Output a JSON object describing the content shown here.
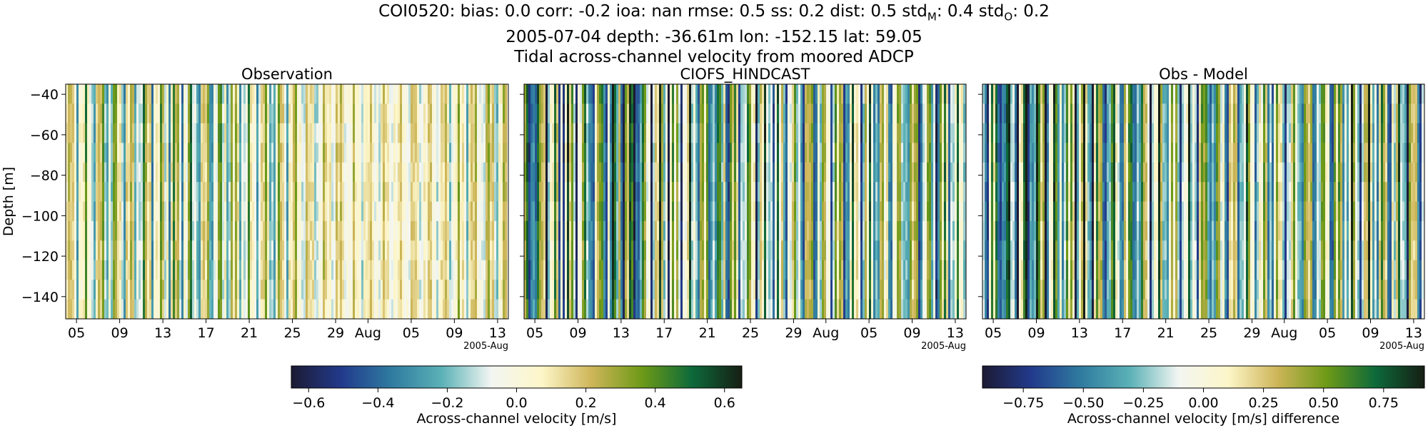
{
  "header": {
    "station_line": {
      "prefix": "COI0520: bias: 0.0  corr: -0.2  ioa: nan  rmse: 0.5  ss: 0.2  dist: 0.5  std",
      "sub_m": "M",
      "mid": ": 0.4  std",
      "sub_o": "O",
      "suffix": ": 0.2"
    },
    "info_line": "2005-07-04 depth: -36.61m lon: -152.15 lat: 59.05",
    "description_line": "Tidal across-channel velocity from moored ADCP"
  },
  "chart_data": [
    {
      "type": "heatmap",
      "title": "Observation",
      "ylabel": "Depth [m]",
      "x_tick_labels": [
        "05",
        "09",
        "13",
        "17",
        "21",
        "25",
        "29",
        "Aug",
        "05",
        "09",
        "13"
      ],
      "x_offset_label": "2005-Aug",
      "x_range": [
        "2005-07-04",
        "2005-08-14"
      ],
      "y_ticks": [
        -40,
        -60,
        -80,
        -100,
        -120,
        -140
      ],
      "y_range": [
        -151,
        -35
      ],
      "colorbar": "shared-velocity",
      "value_range": [
        -0.65,
        0.65
      ],
      "grid": false
    },
    {
      "type": "heatmap",
      "title": "CIOFS_HINDCAST",
      "x_tick_labels": [
        "05",
        "09",
        "13",
        "17",
        "21",
        "25",
        "29",
        "Aug",
        "05",
        "09",
        "13"
      ],
      "x_offset_label": "2005-Aug",
      "x_range": [
        "2005-07-04",
        "2005-08-14"
      ],
      "y_range": [
        -151,
        -35
      ],
      "colorbar": "shared-velocity",
      "value_range": [
        -0.65,
        0.65
      ],
      "grid": false
    },
    {
      "type": "heatmap",
      "title": "Obs - Model",
      "x_tick_labels": [
        "05",
        "09",
        "13",
        "17",
        "21",
        "25",
        "29",
        "Aug",
        "05",
        "09",
        "13"
      ],
      "x_offset_label": "2005-Aug",
      "x_range": [
        "2005-07-04",
        "2005-08-14"
      ],
      "y_range": [
        -151,
        -35
      ],
      "colorbar": "difference",
      "value_range": [
        -0.92,
        0.92
      ],
      "grid": false
    }
  ],
  "colorbars": [
    {
      "label": "Across-channel velocity [m/s]",
      "tick_labels": [
        "−0.6",
        "−0.4",
        "−0.2",
        "0.0",
        "0.2",
        "0.4",
        "0.6"
      ],
      "tick_values": [
        -0.6,
        -0.4,
        -0.2,
        0.0,
        0.2,
        0.4,
        0.6
      ],
      "range": [
        -0.65,
        0.65
      ]
    },
    {
      "label": "Across-channel velocity [m/s] difference",
      "tick_labels": [
        "−0.75",
        "−0.50",
        "−0.25",
        "0.00",
        "0.25",
        "0.50",
        "0.75"
      ],
      "tick_values": [
        -0.75,
        -0.5,
        -0.25,
        0.0,
        0.25,
        0.5,
        0.75
      ],
      "range": [
        -0.92,
        0.92
      ]
    }
  ],
  "colormap": [
    "#1c1a33",
    "#223a8c",
    "#2f7ba0",
    "#5ab1b6",
    "#f3f6f2",
    "#fdf6c8",
    "#cdb558",
    "#6e9a17",
    "#0d6a3a",
    "#161e14"
  ]
}
